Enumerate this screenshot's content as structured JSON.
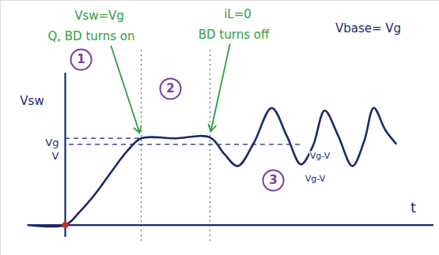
{
  "chart_data": {
    "type": "line",
    "x_label": "t",
    "y_label": "Vsw",
    "x": [
      -0.47,
      0,
      0.18,
      0.38,
      0.58,
      0.78,
      0.96,
      1.38,
      1.83,
      2.01,
      2.18,
      2.38,
      2.61,
      2.8,
      2.98,
      3.13,
      3.28,
      3.45,
      3.63,
      3.78,
      3.9,
      4.05,
      4.18
    ],
    "values": [
      0,
      0,
      0.15,
      0.36,
      0.61,
      0.85,
      1.0,
      1.0,
      1.01,
      0.82,
      0.68,
      0.94,
      1.35,
      1.03,
      0.7,
      0.91,
      1.32,
      1.03,
      0.68,
      0.97,
      1.35,
      1.09,
      0.94
    ],
    "color": "#1b2a6b",
    "xlim": [
      -0.82,
      4.73
    ],
    "ylim": [
      -0.35,
      2.59
    ],
    "xticks": [],
    "yticks": [],
    "tick_labels": false,
    "reference_lines": [
      {
        "label": "Vg",
        "y": 1.0,
        "x": [
          0,
          0.96
        ]
      },
      {
        "label": "V",
        "y": 0.93,
        "x": [
          0.05,
          3.0
        ]
      }
    ],
    "region_boundaries": [
      0.96,
      1.83
    ],
    "region_labels": [
      "1",
      "2",
      "3"
    ],
    "annotations": [
      {
        "text": "Vsw=Vg",
        "color": "#2e9e3e"
      },
      {
        "text": "Q, BD turns on",
        "color": "#2e9e3e"
      },
      {
        "text": "iL=0",
        "color": "#2e9e3e"
      },
      {
        "text": "BD turns off",
        "color": "#2e9e3e"
      },
      {
        "text": "Vbase= Vg",
        "color": "#1b2a6b"
      },
      {
        "text": "Vg-V",
        "color": "#1b2a6b"
      },
      {
        "text": "Vg-V",
        "color": "#1b2a6b"
      }
    ]
  }
}
